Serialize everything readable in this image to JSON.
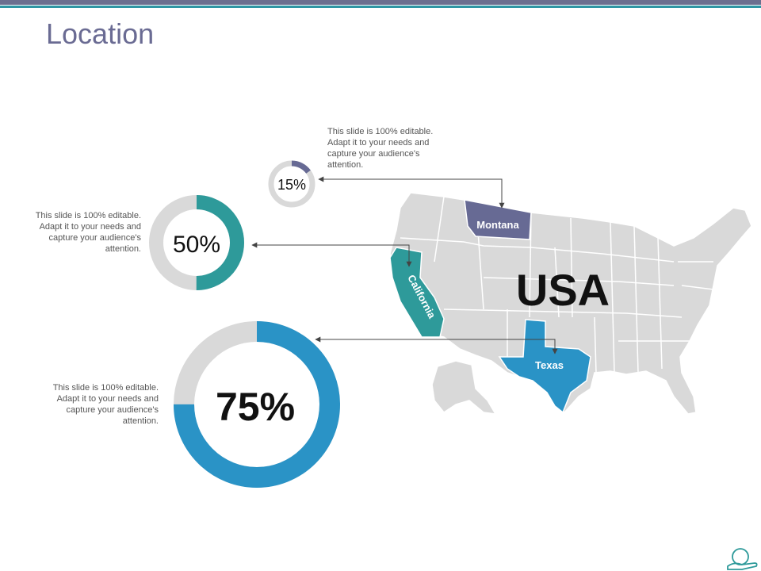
{
  "title": "Location",
  "country_label": "USA",
  "colors": {
    "purple": "#676a94",
    "teal": "#2e9a9a",
    "blue": "#2a93c6",
    "map_gray": "#d9d9d9",
    "ring_gray": "#d9d9d9"
  },
  "items": [
    {
      "state": "Montana",
      "percent_label": "15%",
      "percent": 15,
      "color": "#676a94",
      "description": [
        "This slide is 100% editable.",
        "Adapt it to your needs and",
        "capture your audience's",
        "attention."
      ]
    },
    {
      "state": "California",
      "percent_label": "50%",
      "percent": 50,
      "color": "#2e9a9a",
      "description": [
        "This slide is 100% editable.",
        "Adapt it to your needs and",
        "capture your audience's",
        "attention."
      ]
    },
    {
      "state": "Texas",
      "percent_label": "75%",
      "percent": 75,
      "color": "#2a93c6",
      "description": [
        "This slide is 100% editable.",
        "Adapt it to your needs and",
        "capture your audience's",
        "attention."
      ]
    }
  ]
}
